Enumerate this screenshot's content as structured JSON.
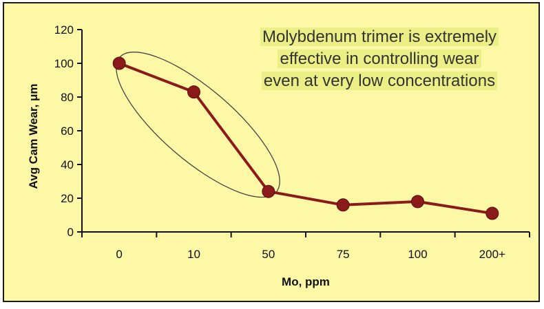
{
  "chart_data": {
    "type": "line",
    "categories": [
      "0",
      "10",
      "50",
      "75",
      "100",
      "200+"
    ],
    "values": [
      100,
      83,
      24,
      16,
      18,
      11
    ],
    "xlabel": "Mo, ppm",
    "ylabel": "Avg Cam Wear, μm",
    "ylim": [
      0,
      120
    ],
    "yticks": [
      "0",
      "20",
      "40",
      "60",
      "80",
      "100",
      "120"
    ],
    "grid": false,
    "line_color": "#8b1a1a",
    "marker_color": "#8b1a1a",
    "annotation": {
      "lines": [
        "Molybdenum trimer is extremely",
        "effective in controlling wear",
        "even at very low concentrations"
      ]
    }
  }
}
